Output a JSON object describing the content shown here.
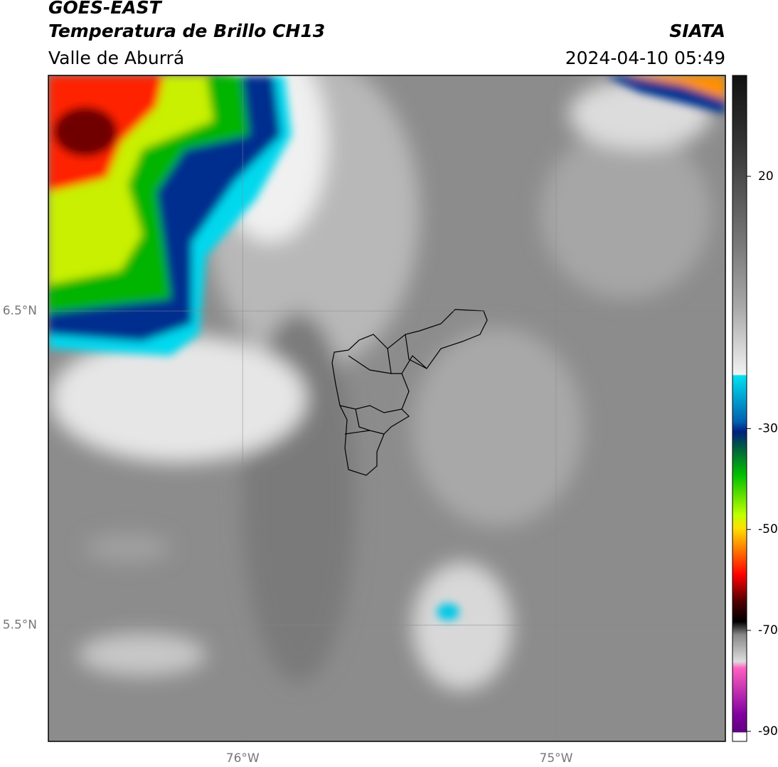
{
  "header": {
    "title": "GOES-EAST",
    "subtitle": "Temperatura de Brillo CH13",
    "region": "Valle de Aburrá",
    "source": "SIATA",
    "timestamp": "2024-04-10 05:49"
  },
  "map": {
    "lon_range": [
      -76.62,
      -74.46
    ],
    "lat_range": [
      5.13,
      7.25
    ],
    "lon_ticks": [
      {
        "value": -76,
        "label": "76°W"
      },
      {
        "value": -75,
        "label": "75°W"
      }
    ],
    "lat_ticks": [
      {
        "value": 6.5,
        "label": "6.5°N"
      },
      {
        "value": 5.5,
        "label": "5.5°N"
      }
    ],
    "grid": true
  },
  "colorbar": {
    "range": [
      -92,
      40
    ],
    "ticks": [
      20,
      -30,
      -50,
      -70,
      -90
    ]
  }
}
